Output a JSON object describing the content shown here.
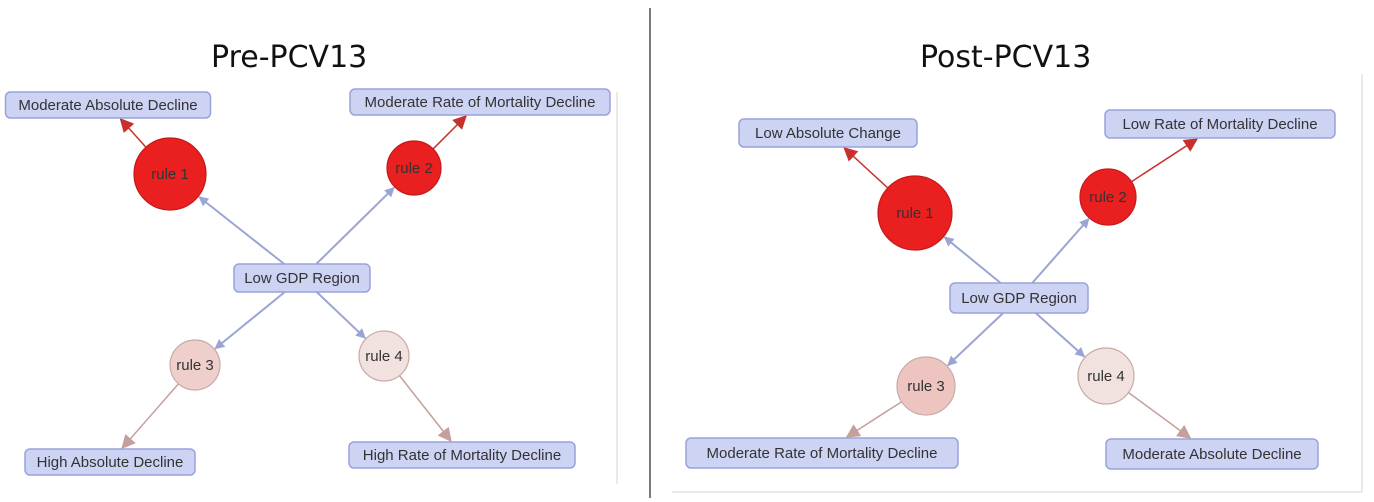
{
  "panels": [
    {
      "title": "Pre-PCV13",
      "center": "Low GDP Region",
      "rules": [
        {
          "label": "rule 1",
          "color": "#ea1f1f",
          "target": "Moderate Absolute Decline",
          "edge_color": "#c8312b",
          "in_color": "#9aa5d4"
        },
        {
          "label": "rule 2",
          "color": "#ea1f1f",
          "target": "Moderate Rate of Mortality Decline",
          "edge_color": "#c8312b",
          "in_color": "#9aa5d4"
        },
        {
          "label": "rule 3",
          "color": "#eecfcc",
          "target": "High Absolute Decline",
          "edge_color": "#c4a09c",
          "in_color": "#9aa5d4"
        },
        {
          "label": "rule 4",
          "color": "#f1e2df",
          "target": "High Rate of Mortality Decline",
          "edge_color": "#c4a09c",
          "in_color": "#9aa5d4"
        }
      ]
    },
    {
      "title": "Post-PCV13",
      "center": "Low GDP Region",
      "rules": [
        {
          "label": "rule 1",
          "color": "#ea1f1f",
          "target": "Low Absolute Change",
          "edge_color": "#c8312b",
          "in_color": "#9aa5d4"
        },
        {
          "label": "rule 2",
          "color": "#ea1f1f",
          "target": "Low Rate of Mortality Decline",
          "edge_color": "#c8312b",
          "in_color": "#9aa5d4"
        },
        {
          "label": "rule 3",
          "color": "#eec4c0",
          "target": "Moderate Rate of Mortality Decline",
          "edge_color": "#c4a09c",
          "in_color": "#9aa5d4"
        },
        {
          "label": "rule 4",
          "color": "#f1e2df",
          "target": "Moderate Absolute Decline",
          "edge_color": "#c4a09c",
          "in_color": "#9aa5d4"
        }
      ]
    }
  ],
  "colors": {
    "node_fill": "#cdd3f3",
    "node_stroke": "#9aa2dc",
    "divider": "#222222",
    "frame": "#d6d6d6"
  }
}
